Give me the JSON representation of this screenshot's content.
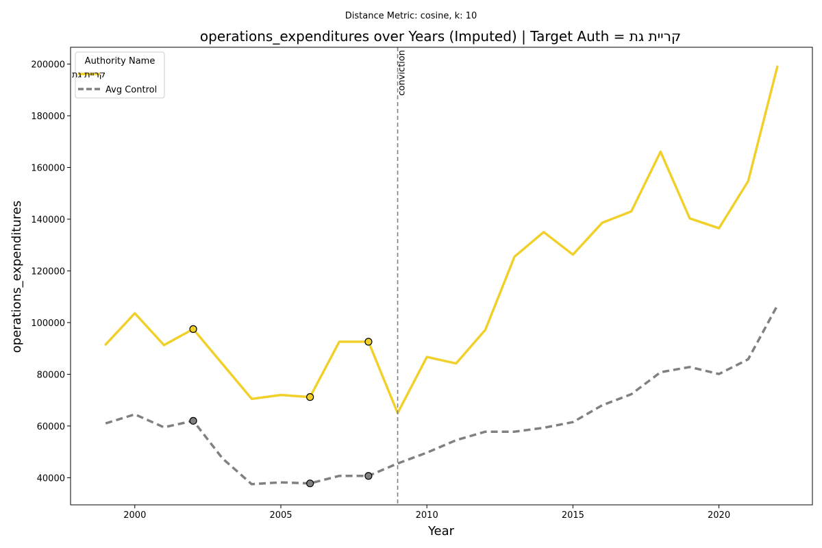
{
  "chart_data": {
    "type": "line",
    "suptitle": "Distance Metric: cosine, k: 10",
    "title": "operations_expenditures over Years (Imputed) | Target Auth = קריית גת",
    "xlabel": "Year",
    "ylabel": "operations_expenditures",
    "xlim": [
      1997.8,
      2023.2
    ],
    "ylim": [
      29500,
      206500
    ],
    "xticks": [
      2000,
      2005,
      2010,
      2015,
      2020
    ],
    "yticks": [
      40000,
      60000,
      80000,
      100000,
      120000,
      140000,
      160000,
      180000,
      200000
    ],
    "grid": false,
    "legend": {
      "title": "Authority Name",
      "placement": "top-left",
      "entries": [
        "קריית גת",
        "Avg Control"
      ]
    },
    "annotations": [
      {
        "type": "vline",
        "x": 2009,
        "label": "conviction",
        "color": "#808080",
        "style": "dashed"
      }
    ],
    "x": [
      1999,
      2000,
      2001,
      2002,
      2003,
      2004,
      2005,
      2006,
      2007,
      2008,
      2009,
      2010,
      2011,
      2012,
      2013,
      2014,
      2015,
      2016,
      2017,
      2018,
      2019,
      2020,
      2021,
      2022
    ],
    "series": [
      {
        "name": "קריית גת",
        "color": "#f1d02a",
        "style": "solid",
        "values": [
          91500,
          103600,
          91300,
          97500,
          84000,
          70500,
          72000,
          71200,
          92600,
          92600,
          65000,
          86700,
          84200,
          97200,
          125500,
          135000,
          126300,
          138600,
          143000,
          166100,
          140300,
          136500,
          154700,
          199000
        ],
        "imputed_years": [
          2002,
          2006,
          2008
        ]
      },
      {
        "name": "Avg Control",
        "color": "#808080",
        "style": "dashed",
        "values": [
          61000,
          64500,
          59500,
          62000,
          47500,
          37500,
          38200,
          37800,
          40700,
          40700,
          45500,
          49700,
          54500,
          57800,
          57800,
          59300,
          61500,
          68000,
          72300,
          80800,
          82800,
          80100,
          85800,
          106600
        ],
        "imputed_years": [
          2002,
          2006,
          2008
        ]
      }
    ]
  }
}
